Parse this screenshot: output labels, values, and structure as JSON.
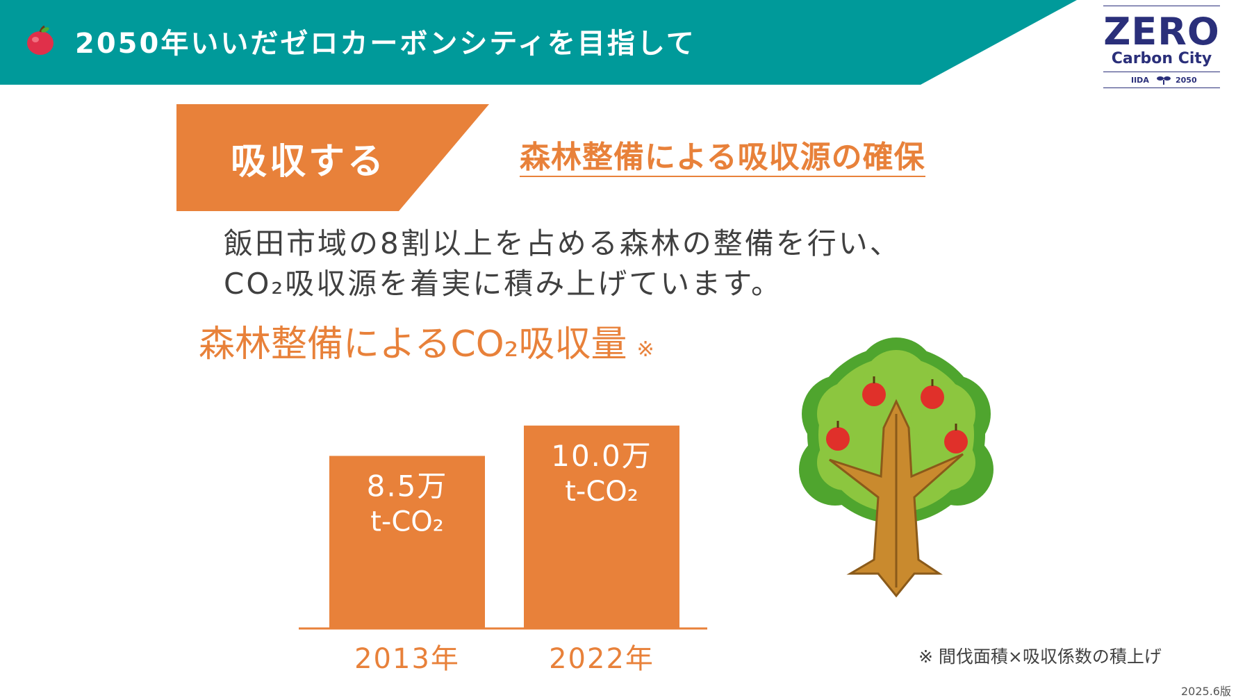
{
  "header": {
    "title": "2050年いいだゼロカーボンシティを目指して",
    "icon": "apple-icon",
    "band_color": "#009a9a"
  },
  "logo": {
    "main": "ZERO",
    "sub": "Carbon City",
    "left_tag": "IIDA",
    "right_tag": "2050",
    "color": "#2a2f7a"
  },
  "section": {
    "tag": "吸収する",
    "subheading": "森林整備による吸収源の確保",
    "accent": "#e8813a"
  },
  "body": {
    "line1": "飯田市域の8割以上を占める森林の整備を行い、",
    "line2": "CO₂吸収源を着実に積み上げています。"
  },
  "chart_title": "森林整備によるCO₂吸収量",
  "chart_title_mark": "※",
  "chart_data": {
    "type": "bar",
    "title": "森林整備によるCO₂吸収量",
    "categories": [
      "2013年",
      "2022年"
    ],
    "values": [
      8.5,
      10.0
    ],
    "value_labels": [
      {
        "top": "8.5万",
        "bottom": "t-CO₂"
      },
      {
        "top": "10.0万",
        "bottom": "t-CO₂"
      }
    ],
    "unit": "万t-CO₂",
    "bar_color": "#e8813a",
    "grid": false
  },
  "footnote": "※ 間伐面積×吸収係数の積上げ",
  "version": "2025.6版",
  "illustration": "apple-tree-icon"
}
